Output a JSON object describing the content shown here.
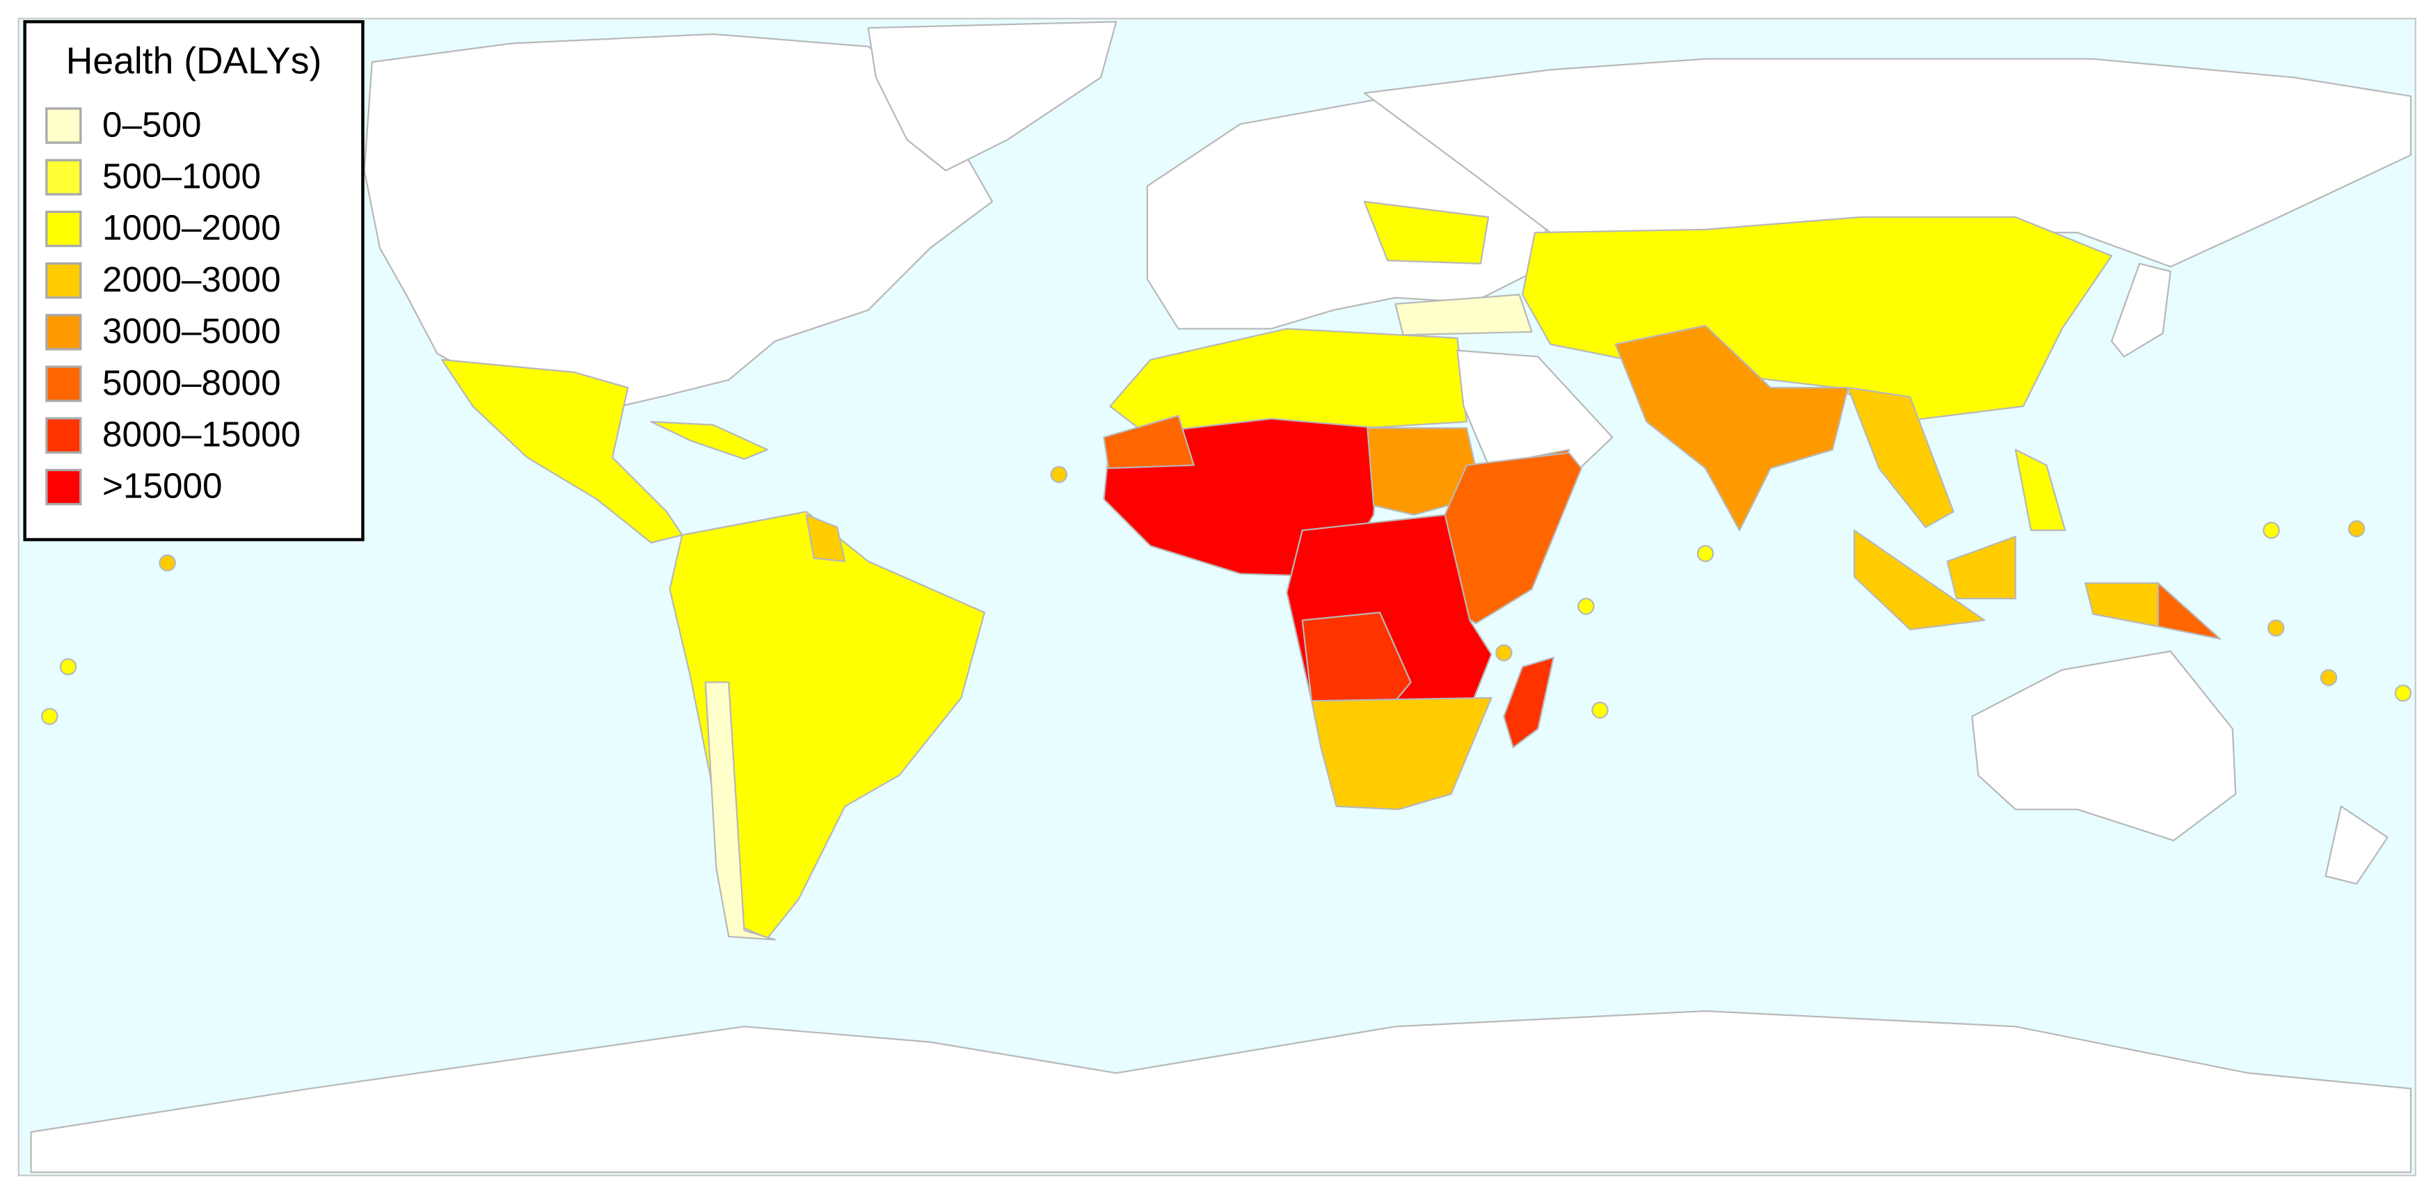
{
  "legend": {
    "title": "Health (DALYs)",
    "items": [
      {
        "label": "0–500",
        "color": "#ffffcc"
      },
      {
        "label": "500–1000",
        "color": "#ffff33"
      },
      {
        "label": "1000–2000",
        "color": "#ffff00"
      },
      {
        "label": "2000–3000",
        "color": "#ffcc00"
      },
      {
        "label": "3000–5000",
        "color": "#ff9900"
      },
      {
        "label": "5000–8000",
        "color": "#ff6600"
      },
      {
        "label": "8000–15000",
        "color": "#ff3300"
      },
      {
        "label": ">15000",
        "color": "#ff0000"
      }
    ]
  }
}
